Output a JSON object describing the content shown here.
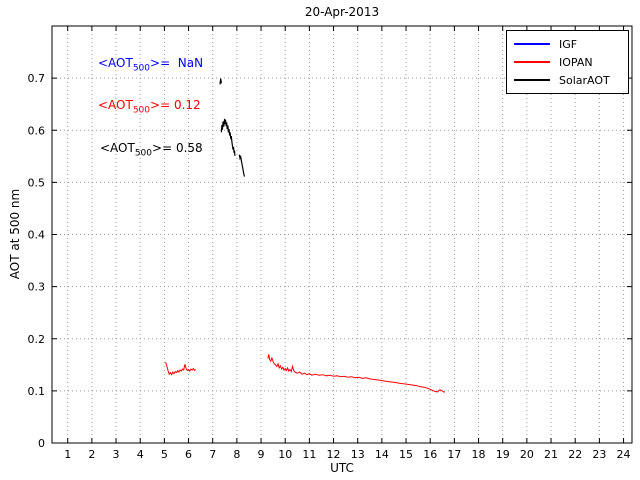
{
  "chart_data": {
    "type": "line",
    "title": "20-Apr-2013",
    "xlabel": "UTC",
    "ylabel": "AOT at 500 nm",
    "xlim": [
      0.35,
      24.35
    ],
    "ylim": [
      0,
      0.8
    ],
    "grid": true,
    "x_ticks": [
      1,
      2,
      3,
      4,
      5,
      6,
      7,
      8,
      9,
      10,
      11,
      12,
      13,
      14,
      15,
      16,
      17,
      18,
      19,
      20,
      21,
      22,
      23,
      24
    ],
    "x_tick_labels": [
      "1",
      "2",
      "3",
      "4",
      "5",
      "6",
      "7",
      "8",
      "9",
      "10",
      "11",
      "12",
      "13",
      "14",
      "15",
      "16",
      "17",
      "18",
      "19",
      "20",
      "21",
      "22",
      "23",
      "24"
    ],
    "y_ticks": [
      0,
      0.1,
      0.2,
      0.3,
      0.4,
      0.5,
      0.6,
      0.7
    ],
    "y_tick_labels": [
      "0",
      "0.1",
      "0.2",
      "0.3",
      "0.4",
      "0.5",
      "0.6",
      "0.7"
    ],
    "legend": {
      "position": "top-right",
      "entries": [
        {
          "label": "IGF",
          "color": "#0000ff"
        },
        {
          "label": "IOPAN",
          "color": "#ff0000"
        },
        {
          "label": "SolarAOT",
          "color": "#000000"
        }
      ]
    },
    "series": [
      {
        "name": "IGF",
        "color": "#0000ff",
        "width": 1,
        "points": []
      },
      {
        "name": "IOPAN",
        "color": "#ff0000",
        "width": 1,
        "points": [
          [
            5.05,
            0.155
          ],
          [
            5.1,
            0.148
          ],
          [
            5.15,
            0.139
          ],
          [
            5.2,
            0.132
          ],
          [
            5.25,
            0.135
          ],
          [
            5.3,
            0.131
          ],
          [
            5.35,
            0.136
          ],
          [
            5.4,
            0.133
          ],
          [
            5.45,
            0.137
          ],
          [
            5.5,
            0.135
          ],
          [
            5.55,
            0.139
          ],
          [
            5.6,
            0.136
          ],
          [
            5.65,
            0.14
          ],
          [
            5.7,
            0.138
          ],
          [
            5.75,
            0.142
          ],
          [
            5.8,
            0.14
          ],
          [
            5.85,
            0.151
          ],
          [
            5.9,
            0.143
          ],
          [
            5.95,
            0.139
          ],
          [
            6.0,
            0.141
          ],
          [
            6.05,
            0.138
          ],
          [
            6.1,
            0.142
          ],
          [
            6.15,
            0.14
          ],
          [
            6.2,
            0.143
          ],
          [
            6.25,
            0.139
          ],
          [
            6.3,
            0.141
          ],
          null,
          [
            9.28,
            0.162
          ],
          [
            9.32,
            0.17
          ],
          [
            9.36,
            0.16
          ],
          [
            9.4,
            0.157
          ],
          [
            9.45,
            0.163
          ],
          [
            9.5,
            0.156
          ],
          [
            9.55,
            0.152
          ],
          [
            9.6,
            0.15
          ],
          [
            9.65,
            0.147
          ],
          [
            9.7,
            0.152
          ],
          [
            9.75,
            0.144
          ],
          [
            9.8,
            0.148
          ],
          [
            9.85,
            0.142
          ],
          [
            9.9,
            0.145
          ],
          [
            9.95,
            0.14
          ],
          [
            10.0,
            0.143
          ],
          [
            10.05,
            0.139
          ],
          [
            10.1,
            0.144
          ],
          [
            10.15,
            0.138
          ],
          [
            10.2,
            0.141
          ],
          [
            10.25,
            0.137
          ],
          [
            10.3,
            0.147
          ],
          [
            10.35,
            0.139
          ],
          [
            10.4,
            0.136
          ],
          [
            10.5,
            0.134
          ],
          [
            10.6,
            0.136
          ],
          [
            10.7,
            0.132
          ],
          [
            10.8,
            0.134
          ],
          [
            10.9,
            0.131
          ],
          [
            11.0,
            0.133
          ],
          [
            11.1,
            0.13
          ],
          [
            11.25,
            0.132
          ],
          [
            11.4,
            0.13
          ],
          [
            11.55,
            0.131
          ],
          [
            11.7,
            0.129
          ],
          [
            11.85,
            0.13
          ],
          [
            12.0,
            0.128
          ],
          [
            12.15,
            0.129
          ],
          [
            12.3,
            0.127
          ],
          [
            12.45,
            0.128
          ],
          [
            12.6,
            0.126
          ],
          [
            12.75,
            0.127
          ],
          [
            12.9,
            0.125
          ],
          [
            13.05,
            0.126
          ],
          [
            13.2,
            0.124
          ],
          [
            13.35,
            0.125
          ],
          [
            13.5,
            0.123
          ],
          [
            13.65,
            0.122
          ],
          [
            13.8,
            0.121
          ],
          [
            13.95,
            0.12
          ],
          [
            14.1,
            0.119
          ],
          [
            14.25,
            0.118
          ],
          [
            14.4,
            0.117
          ],
          [
            14.55,
            0.116
          ],
          [
            14.7,
            0.115
          ],
          [
            14.85,
            0.114
          ],
          [
            15.0,
            0.113
          ],
          [
            15.15,
            0.112
          ],
          [
            15.3,
            0.111
          ],
          [
            15.45,
            0.11
          ],
          [
            15.6,
            0.108
          ],
          [
            15.75,
            0.107
          ],
          [
            15.9,
            0.105
          ],
          [
            16.0,
            0.103
          ],
          [
            16.1,
            0.101
          ],
          [
            16.2,
            0.099
          ],
          [
            16.3,
            0.098
          ],
          [
            16.4,
            0.102
          ],
          [
            16.5,
            0.1
          ],
          [
            16.6,
            0.097
          ]
        ]
      },
      {
        "name": "SolarAOT",
        "color": "#000000",
        "width": 1.2,
        "points": [
          [
            7.3,
            0.688
          ],
          [
            7.33,
            0.699
          ],
          [
            7.36,
            0.69
          ],
          null,
          [
            7.36,
            0.596
          ],
          [
            7.38,
            0.61
          ],
          [
            7.4,
            0.601
          ],
          [
            7.43,
            0.617
          ],
          [
            7.46,
            0.607
          ],
          [
            7.49,
            0.622
          ],
          [
            7.51,
            0.612
          ],
          [
            7.53,
            0.62
          ],
          [
            7.56,
            0.608
          ],
          [
            7.58,
            0.615
          ],
          [
            7.6,
            0.602
          ],
          [
            7.63,
            0.609
          ],
          [
            7.65,
            0.596
          ],
          [
            7.68,
            0.602
          ],
          [
            7.7,
            0.59
          ],
          [
            7.72,
            0.596
          ],
          [
            7.75,
            0.583
          ],
          [
            7.77,
            0.589
          ],
          [
            7.8,
            0.576
          ],
          [
            7.82,
            0.57
          ],
          [
            7.84,
            0.563
          ],
          [
            7.86,
            0.568
          ],
          [
            7.88,
            0.557
          ],
          [
            7.9,
            0.561
          ],
          [
            7.92,
            0.551
          ],
          null,
          [
            8.1,
            0.553
          ],
          [
            8.13,
            0.546
          ],
          [
            8.16,
            0.549
          ],
          [
            8.19,
            0.54
          ],
          [
            8.22,
            0.533
          ],
          [
            8.25,
            0.526
          ],
          [
            8.28,
            0.518
          ],
          [
            8.31,
            0.511
          ]
        ]
      }
    ]
  },
  "annotations": [
    {
      "name": "igf-mean",
      "color": "#0000ff",
      "pre": "<AOT",
      "sub": "500",
      "post": ">=  NaN"
    },
    {
      "name": "iopan-mean",
      "color": "#ff0000",
      "pre": "<AOT",
      "sub": "500",
      "post": ">= 0.12"
    },
    {
      "name": "solaraot-mean",
      "color": "#000000",
      "pre": "<AOT",
      "sub": "500",
      "post": ">= 0.58"
    }
  ]
}
